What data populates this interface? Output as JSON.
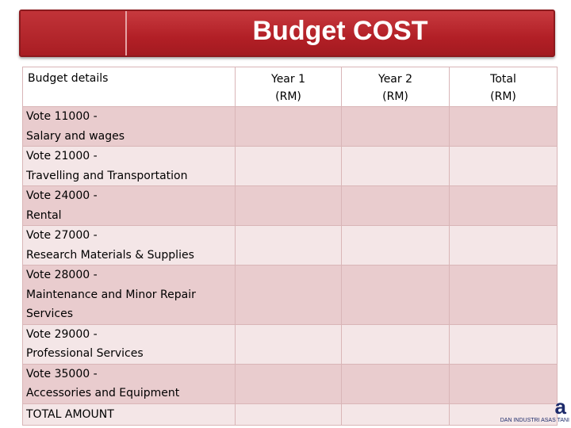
{
  "title": "Budget COST",
  "table": {
    "headers": {
      "details": "Budget details",
      "year1_line1": "Year 1",
      "year1_line2": "(RM)",
      "year2_line1": "Year 2",
      "year2_line2": "(RM)",
      "total_line1": "Total",
      "total_line2": "(RM)"
    },
    "rows": [
      {
        "line1": " Vote 11000 -",
        "line2": "Salary and wages"
      },
      {
        "line1": " Vote 21000 -",
        "line2": "Travelling and  Transportation"
      },
      {
        "line1": "Vote 24000 -",
        "line2": "Rental"
      },
      {
        "line1": "Vote 27000 -",
        "line2": "Research Materials & Supplies"
      },
      {
        "line1": " Vote 28000 -",
        "line2": "Maintenance and Minor Repair",
        "line3": "Services"
      },
      {
        "line1": " Vote 29000 -",
        "line2": "Professional Services"
      },
      {
        "line1": " Vote 35000 -",
        "line2": "Accessories and  Equipment"
      }
    ],
    "total_label": "TOTAL AMOUNT"
  },
  "logo": {
    "mark": "a",
    "strip": "DAN INDUSTRI ASAS TANI"
  },
  "colors": {
    "title_bar": "#b21f26",
    "row_dark": "#e9ccce",
    "row_light": "#f4e6e7",
    "border": "#d9b5b7"
  }
}
